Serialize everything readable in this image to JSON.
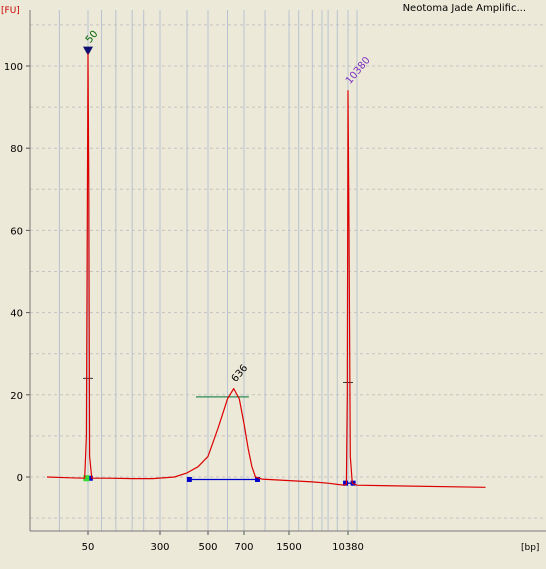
{
  "title": "Neotoma Jade Amplific...",
  "y_unit": "[FU]",
  "x_unit": "[bp]",
  "colors": {
    "background": "#ece9d8",
    "trace": "#dd0000",
    "grid": "#c4c4c4",
    "baseline": "#0000cc",
    "peak_bar": "#2e8b57",
    "lower_marker": "#006400",
    "upper_marker": "#7b2fbf",
    "sample_peak_label": "#000000",
    "triangle": "#101070"
  },
  "chart_data": {
    "type": "line",
    "title": "Neotoma Jade Amplific...",
    "xlabel": "[bp]",
    "ylabel": "[FU]",
    "x_scale": "bp ladder (non-linear)",
    "y_ticks": [
      0,
      20,
      40,
      60,
      80,
      100
    ],
    "ylim": [
      -13,
      113
    ],
    "x_tick_labels": [
      {
        "bp": 50,
        "label": "50"
      },
      {
        "bp": 300,
        "label": "300"
      },
      {
        "bp": 500,
        "label": "500"
      },
      {
        "bp": 700,
        "label": "700"
      },
      {
        "bp": 1500,
        "label": "1500"
      },
      {
        "bp": 10380,
        "label": "10380"
      }
    ],
    "x_ladder_bp": [
      35,
      50,
      70,
      100,
      150,
      200,
      300,
      400,
      500,
      600,
      700,
      1000,
      1500,
      2000,
      3000,
      4000,
      5000,
      7000,
      10380,
      11500
    ],
    "grid": true,
    "series": [
      {
        "points": [
          [
            30,
            0.0
          ],
          [
            40,
            -0.2
          ],
          [
            48,
            -0.3
          ],
          [
            49,
            10
          ],
          [
            50,
            103
          ],
          [
            51,
            70
          ],
          [
            52,
            5
          ],
          [
            55,
            -0.3
          ],
          [
            80,
            -0.3
          ],
          [
            150,
            -0.4
          ],
          [
            250,
            -0.4
          ],
          [
            350,
            0.0
          ],
          [
            400,
            1.0
          ],
          [
            450,
            2.5
          ],
          [
            500,
            5.0
          ],
          [
            550,
            12
          ],
          [
            600,
            19
          ],
          [
            636,
            21.5
          ],
          [
            670,
            19
          ],
          [
            700,
            13
          ],
          [
            750,
            7
          ],
          [
            800,
            2.5
          ],
          [
            850,
            0.0
          ],
          [
            950,
            -0.5
          ],
          [
            1200,
            -0.7
          ],
          [
            2000,
            -1.0
          ],
          [
            3000,
            -1.2
          ],
          [
            5000,
            -1.5
          ],
          [
            7000,
            -1.8
          ],
          [
            9000,
            -2.0
          ],
          [
            9800,
            -1.8
          ],
          [
            10100,
            20
          ],
          [
            10380,
            94
          ],
          [
            10500,
            60
          ],
          [
            10650,
            5
          ],
          [
            10900,
            -1.5
          ],
          [
            11500,
            -2.0
          ],
          [
            12500,
            -2.5
          ]
        ]
      }
    ],
    "peaks": [
      {
        "bp": 50,
        "label": "50",
        "fu": 103,
        "kind": "lower marker"
      },
      {
        "bp": 636,
        "label": "636",
        "fu": 21.5,
        "kind": "sample"
      },
      {
        "bp": 10380,
        "label": "10380",
        "fu": 94,
        "kind": "upper marker"
      }
    ],
    "peak_region": {
      "from_bp": 440,
      "to_bp": 760,
      "fu": 19.5
    },
    "baselines": [
      {
        "from_bp": 49,
        "to_bp": 53,
        "fu": -0.3
      },
      {
        "from_bp": 410,
        "to_bp": 880,
        "fu": -0.6
      },
      {
        "from_bp": 9500,
        "to_bp": 11000,
        "fu": -1.5
      }
    ],
    "half_height_ticks": [
      {
        "bp": 50,
        "fu": 24
      },
      {
        "bp": 10380,
        "fu": 23
      }
    ]
  }
}
